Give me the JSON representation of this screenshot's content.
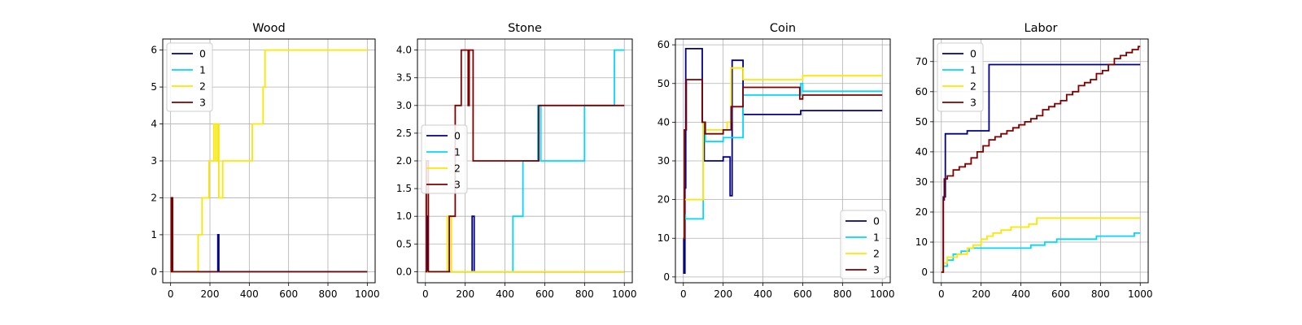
{
  "chart_data": [
    {
      "type": "line",
      "title": "Wood",
      "xlim": [
        -40,
        1040
      ],
      "ylim": [
        -0.3,
        6.3
      ],
      "xticks": [
        0,
        200,
        400,
        600,
        800,
        1000
      ],
      "yticks": [
        0,
        1,
        2,
        3,
        4,
        5,
        6
      ],
      "grid": true,
      "legend_position": "upper-left",
      "series": [
        {
          "name": "0",
          "color": "#00008b",
          "x": [
            0,
            5,
            5,
            10,
            10,
            15,
            15,
            240,
            240,
            245,
            245,
            1000
          ],
          "y": [
            0,
            0,
            2,
            2,
            0,
            0,
            0,
            0,
            1,
            1,
            0,
            0
          ]
        },
        {
          "name": "1",
          "color": "#00d7ff",
          "x": [
            0,
            1000
          ],
          "y": [
            0,
            0
          ]
        },
        {
          "name": "2",
          "color": "#ffe600",
          "x": [
            0,
            140,
            140,
            150,
            150,
            160,
            160,
            195,
            195,
            220,
            220,
            230,
            230,
            240,
            240,
            245,
            245,
            265,
            265,
            280,
            280,
            415,
            415,
            470,
            470,
            480,
            480,
            490,
            490,
            1000
          ],
          "y": [
            0,
            0,
            1,
            1,
            1,
            1,
            2,
            2,
            3,
            3,
            4,
            4,
            3,
            3,
            4,
            4,
            2,
            2,
            3,
            3,
            3,
            3,
            4,
            4,
            5,
            5,
            6,
            6,
            6,
            6
          ]
        },
        {
          "name": "3",
          "color": "#800000",
          "x": [
            0,
            3,
            3,
            10,
            10,
            1000
          ],
          "y": [
            0,
            0,
            2,
            2,
            0,
            0
          ]
        }
      ]
    },
    {
      "type": "line",
      "title": "Stone",
      "xlim": [
        -40,
        1040
      ],
      "ylim": [
        -0.2,
        4.2
      ],
      "xticks": [
        0,
        200,
        400,
        600,
        800,
        1000
      ],
      "yticks": [
        0.0,
        0.5,
        1.0,
        1.5,
        2.0,
        2.5,
        3.0,
        3.5,
        4.0
      ],
      "ytick_labels": [
        "0.0",
        "0.5",
        "1.0",
        "1.5",
        "2.0",
        "2.5",
        "3.0",
        "3.5",
        "4.0"
      ],
      "grid": true,
      "legend_position": "center-left",
      "series": [
        {
          "name": "0",
          "color": "#00008b",
          "x": [
            0,
            8,
            8,
            12,
            12,
            235,
            235,
            245,
            245,
            1000
          ],
          "y": [
            0,
            0,
            1,
            1,
            0,
            0,
            1,
            1,
            0,
            0
          ]
        },
        {
          "name": "1",
          "color": "#00d7ff",
          "x": [
            0,
            440,
            440,
            490,
            490,
            500,
            500,
            565,
            565,
            580,
            580,
            800,
            800,
            950,
            950,
            1000
          ],
          "y": [
            0,
            0,
            1,
            1,
            2,
            2,
            2,
            2,
            3,
            3,
            2,
            2,
            3,
            3,
            4,
            4
          ]
        },
        {
          "name": "2",
          "color": "#ffe600",
          "x": [
            0,
            110,
            110,
            130,
            130,
            1000
          ],
          "y": [
            0,
            0,
            1,
            1,
            0,
            0
          ]
        },
        {
          "name": "3",
          "color": "#800000",
          "x": [
            0,
            5,
            5,
            15,
            15,
            120,
            120,
            150,
            150,
            180,
            180,
            215,
            215,
            220,
            220,
            240,
            240,
            570,
            570,
            1000
          ],
          "y": [
            0,
            0,
            2,
            2,
            0,
            0,
            1,
            1,
            3,
            3,
            4,
            4,
            3,
            3,
            4,
            4,
            2,
            2,
            3,
            3
          ]
        }
      ]
    },
    {
      "type": "line",
      "title": "Coin",
      "xlim": [
        -40,
        1040
      ],
      "ylim": [
        -1.5,
        61.5
      ],
      "xticks": [
        0,
        200,
        400,
        600,
        800,
        1000
      ],
      "yticks": [
        0,
        10,
        20,
        30,
        40,
        50,
        60
      ],
      "grid": true,
      "legend_position": "lower-right",
      "series": [
        {
          "name": "0",
          "color": "#00008b",
          "x": [
            0,
            2,
            2,
            8,
            8,
            12,
            12,
            95,
            95,
            105,
            105,
            200,
            200,
            235,
            235,
            245,
            245,
            300,
            300,
            310,
            310,
            590,
            590,
            1000
          ],
          "y": [
            10,
            10,
            1,
            1,
            23,
            23,
            59,
            59,
            40,
            40,
            30,
            30,
            31,
            31,
            21,
            21,
            56,
            56,
            42,
            42,
            42,
            42,
            43,
            43
          ]
        },
        {
          "name": "1",
          "color": "#00d7ff",
          "x": [
            0,
            10,
            10,
            100,
            100,
            110,
            110,
            200,
            200,
            240,
            240,
            300,
            300,
            310,
            310,
            590,
            590,
            600,
            600,
            1000
          ],
          "y": [
            16,
            16,
            15,
            15,
            40,
            40,
            35,
            35,
            36,
            36,
            36,
            36,
            47,
            47,
            47,
            47,
            50,
            50,
            48,
            48
          ]
        },
        {
          "name": "2",
          "color": "#ffe600",
          "x": [
            0,
            5,
            5,
            100,
            100,
            110,
            110,
            220,
            220,
            240,
            240,
            290,
            290,
            300,
            300,
            590,
            590,
            600,
            600,
            1000
          ],
          "y": [
            10,
            10,
            20,
            20,
            40,
            40,
            38,
            38,
            40,
            40,
            54,
            54,
            54,
            54,
            51,
            51,
            51,
            51,
            52,
            52
          ]
        },
        {
          "name": "3",
          "color": "#800000",
          "x": [
            0,
            5,
            5,
            15,
            15,
            95,
            95,
            110,
            110,
            125,
            125,
            200,
            200,
            240,
            240,
            300,
            300,
            585,
            585,
            600,
            600,
            1000
          ],
          "y": [
            10,
            10,
            38,
            38,
            51,
            51,
            40,
            40,
            37,
            37,
            37,
            37,
            38,
            38,
            44,
            44,
            49,
            49,
            46,
            46,
            47,
            47
          ]
        }
      ]
    },
    {
      "type": "line",
      "title": "Labor",
      "xlim": [
        -40,
        1040
      ],
      "ylim": [
        -3.5,
        77.5
      ],
      "xticks": [
        0,
        200,
        400,
        600,
        800,
        1000
      ],
      "yticks": [
        0,
        10,
        20,
        30,
        40,
        50,
        60,
        70
      ],
      "grid": true,
      "legend_position": "upper-left",
      "series": [
        {
          "name": "0",
          "color": "#00008b",
          "x": [
            0,
            10,
            10,
            20,
            20,
            130,
            130,
            240,
            240,
            1000
          ],
          "y": [
            0,
            0,
            25,
            25,
            46,
            46,
            47,
            47,
            69,
            69
          ]
        },
        {
          "name": "1",
          "color": "#00d7ff",
          "x": [
            0,
            10,
            10,
            30,
            30,
            60,
            60,
            100,
            100,
            140,
            140,
            450,
            450,
            520,
            520,
            580,
            580,
            780,
            780,
            970,
            970,
            1000
          ],
          "y": [
            0,
            0,
            2,
            2,
            4,
            4,
            6,
            6,
            7,
            7,
            8,
            8,
            9,
            9,
            10,
            10,
            11,
            11,
            12,
            12,
            13,
            13
          ]
        },
        {
          "name": "2",
          "color": "#ffe600",
          "x": [
            0,
            10,
            10,
            30,
            30,
            80,
            80,
            130,
            130,
            160,
            160,
            200,
            200,
            230,
            230,
            260,
            260,
            300,
            300,
            350,
            350,
            440,
            440,
            480,
            480,
            500,
            500,
            1000
          ],
          "y": [
            0,
            0,
            3,
            3,
            5,
            5,
            6,
            6,
            8,
            8,
            9,
            9,
            11,
            11,
            12,
            12,
            13,
            13,
            14,
            14,
            15,
            15,
            16,
            16,
            18,
            18,
            18,
            18
          ]
        },
        {
          "name": "3",
          "color": "#800000",
          "x": [
            0,
            10,
            10,
            15,
            15,
            30,
            30,
            60,
            60,
            90,
            90,
            120,
            120,
            150,
            150,
            180,
            180,
            210,
            210,
            240,
            240,
            270,
            270,
            300,
            300,
            330,
            330,
            360,
            360,
            390,
            390,
            420,
            420,
            450,
            450,
            480,
            480,
            510,
            510,
            540,
            540,
            570,
            570,
            600,
            600,
            630,
            630,
            660,
            660,
            690,
            690,
            720,
            720,
            750,
            750,
            780,
            780,
            810,
            810,
            840,
            840,
            870,
            870,
            900,
            900,
            930,
            930,
            960,
            960,
            990,
            990,
            1000
          ],
          "y": [
            0,
            0,
            24,
            24,
            31,
            31,
            32,
            32,
            34,
            34,
            35,
            35,
            36,
            36,
            38,
            38,
            40,
            40,
            42,
            42,
            44,
            44,
            45,
            45,
            46,
            46,
            47,
            47,
            48,
            48,
            49,
            49,
            50,
            50,
            51,
            51,
            52,
            52,
            54,
            54,
            55,
            55,
            56,
            56,
            57,
            57,
            59,
            59,
            60,
            60,
            62,
            62,
            63,
            63,
            64,
            64,
            66,
            66,
            67,
            67,
            69,
            69,
            71,
            71,
            72,
            72,
            73,
            73,
            74,
            74,
            75,
            75
          ]
        }
      ]
    }
  ]
}
